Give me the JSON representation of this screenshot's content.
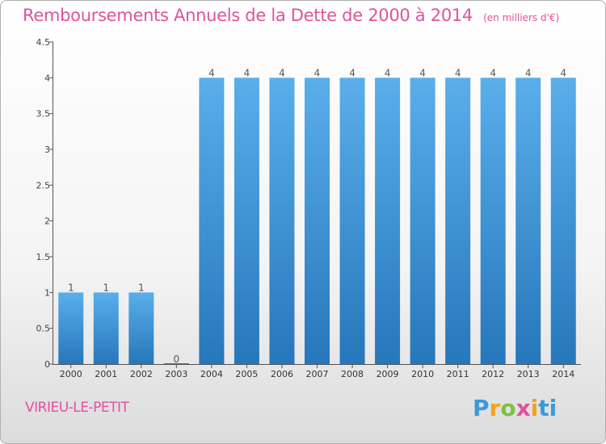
{
  "header": {
    "title": "Remboursements Annuels de la Dette de 2000 à 2014",
    "subtitle": "(en milliers d'€)"
  },
  "footer": {
    "commune": "VIRIEU-LE-PETIT",
    "logo_text": "Proxiti"
  },
  "colors": {
    "accent": "#e0529c",
    "bar": "#3a8fd6"
  },
  "chart_data": {
    "type": "bar",
    "title": "Remboursements Annuels de la Dette de 2000 à 2014",
    "subtitle": "(en milliers d'€)",
    "xlabel": "",
    "ylabel": "",
    "categories": [
      "2000",
      "2001",
      "2002",
      "2003",
      "2004",
      "2005",
      "2006",
      "2007",
      "2008",
      "2009",
      "2010",
      "2011",
      "2012",
      "2013",
      "2014"
    ],
    "values": [
      1,
      1,
      1,
      0,
      4,
      4,
      4,
      4,
      4,
      4,
      4,
      4,
      4,
      4,
      4
    ],
    "data_labels": [
      "1",
      "1",
      "1",
      "0",
      "4",
      "4",
      "4",
      "4",
      "4",
      "4",
      "4",
      "4",
      "4",
      "4",
      "4"
    ],
    "ylim": [
      0,
      4.5
    ],
    "yticks": [
      0,
      0.5,
      1,
      1.5,
      2,
      2.5,
      3,
      3.5,
      4,
      4.5
    ],
    "ytick_labels": [
      "0",
      "0.5",
      "1",
      "1.5",
      "2",
      "2.5",
      "3",
      "3.5",
      "4",
      "4.5"
    ],
    "grid": false
  }
}
